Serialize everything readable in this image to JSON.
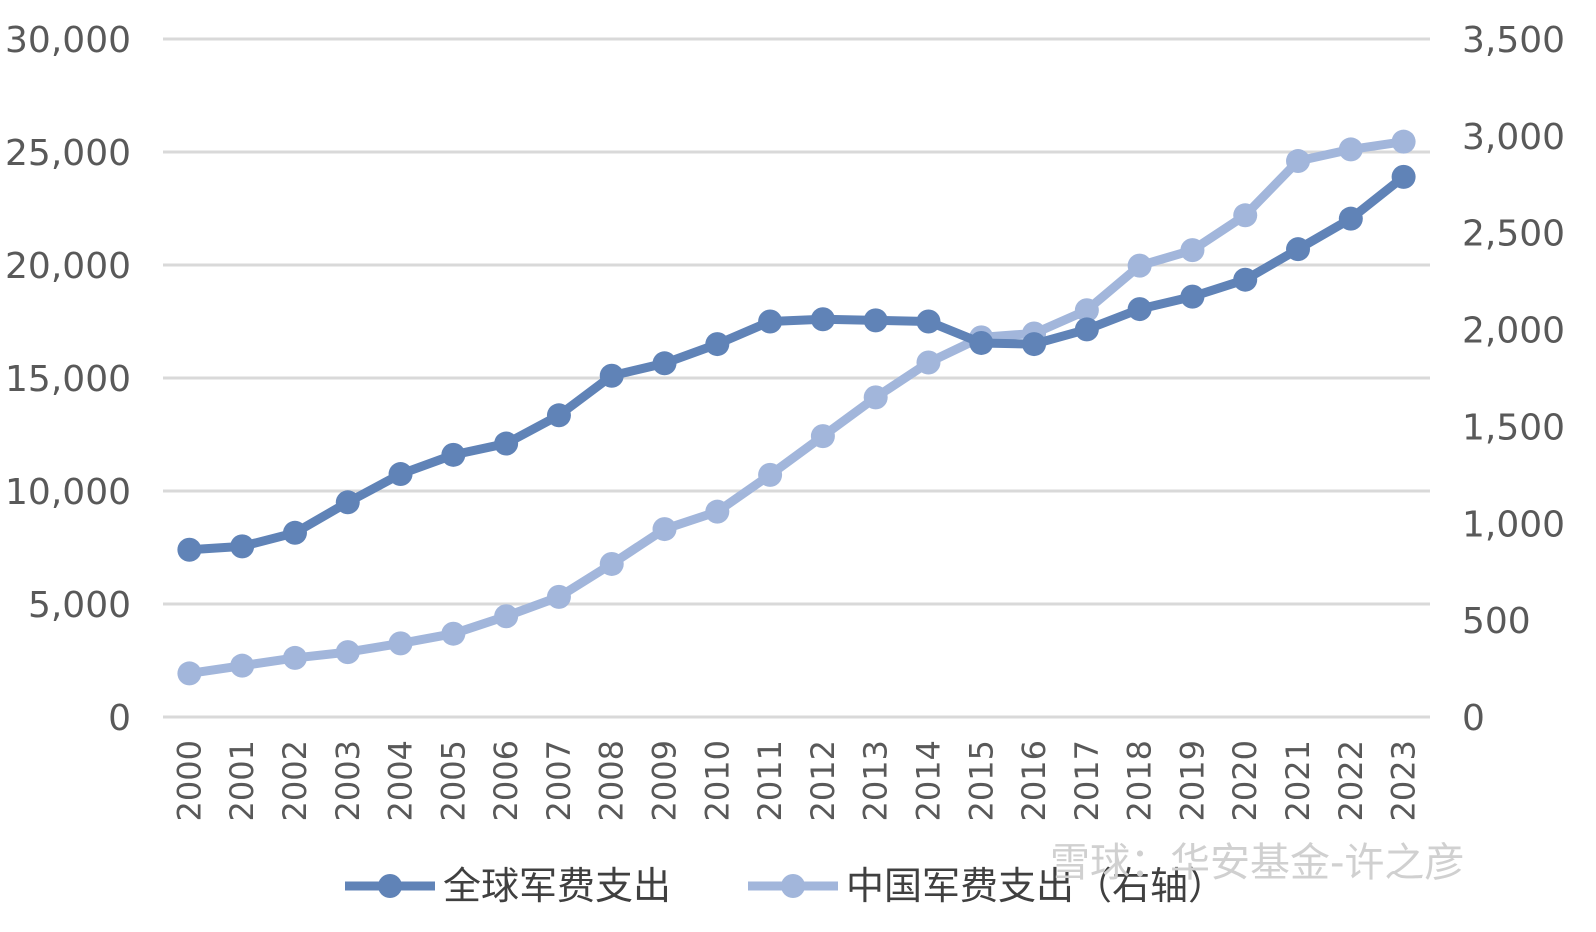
{
  "chart_data": {
    "type": "line",
    "categories": [
      "2000",
      "2001",
      "2002",
      "2003",
      "2004",
      "2005",
      "2006",
      "2007",
      "2008",
      "2009",
      "2010",
      "2011",
      "2012",
      "2013",
      "2014",
      "2015",
      "2016",
      "2017",
      "2018",
      "2019",
      "2020",
      "2021",
      "2022",
      "2023"
    ],
    "series": [
      {
        "name": "全球军费支出",
        "axis": "left",
        "color": "#6083b7",
        "values": [
          7400,
          7550,
          8150,
          9500,
          10750,
          11600,
          12100,
          13350,
          15100,
          15650,
          16500,
          17500,
          17600,
          17550,
          17500,
          16550,
          16500,
          17150,
          18050,
          18600,
          19350,
          20700,
          22050,
          23900
        ]
      },
      {
        "name": "中国军费支出（右轴）",
        "axis": "right",
        "color": "#a2b6db",
        "values": [
          225,
          265,
          305,
          335,
          380,
          430,
          520,
          620,
          790,
          970,
          1060,
          1250,
          1450,
          1650,
          1830,
          1960,
          1980,
          2100,
          2330,
          2410,
          2590,
          2870,
          2930,
          2970
        ]
      }
    ],
    "y_left": {
      "min": 0,
      "max": 30000,
      "ticks": [
        "0",
        "5,000",
        "10,000",
        "15,000",
        "20,000",
        "25,000",
        "30,000"
      ]
    },
    "y_right": {
      "min": 0,
      "max": 3500,
      "ticks": [
        "0",
        "500",
        "1,000",
        "1,500",
        "2,000",
        "2,500",
        "3,000",
        "3,500"
      ]
    },
    "grid": true,
    "legend_position": "bottom"
  },
  "watermark": "雪球：华安基金-许之彦"
}
